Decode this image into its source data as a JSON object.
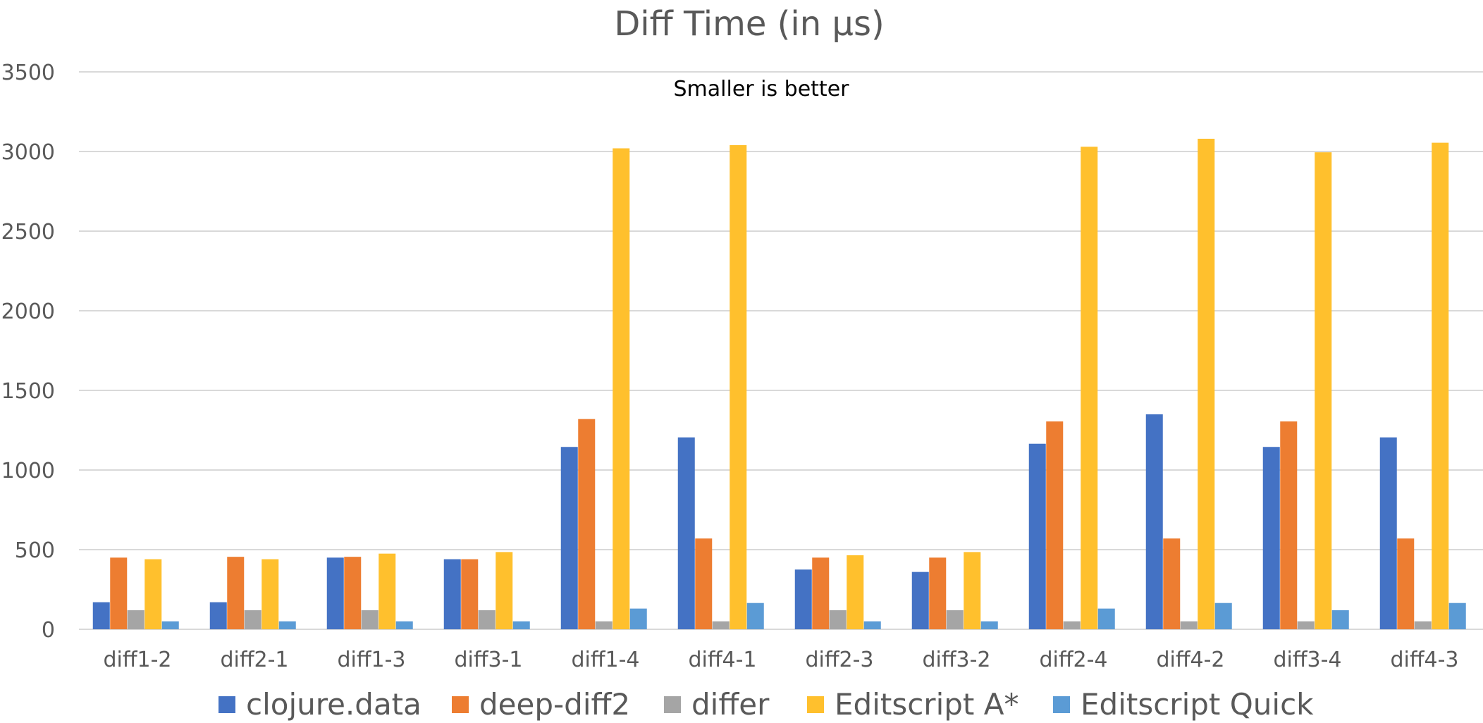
{
  "chart_data": {
    "type": "bar",
    "title": "Diff Time (in  μs)",
    "subtitle": "Smaller is better",
    "xlabel": "",
    "ylabel": "",
    "ylim": [
      0,
      3500
    ],
    "yticks": [
      "0",
      "500",
      "1000",
      "1500",
      "2000",
      "2500",
      "3000",
      "3500"
    ],
    "grid": true,
    "legend_position": "bottom",
    "categories": [
      "diff1-2",
      "diff2-1",
      "diff1-3",
      "diff3-1",
      "diff1-4",
      "diff4-1",
      "diff2-3",
      "diff3-2",
      "diff2-4",
      "diff4-2",
      "diff3-4",
      "diff4-3"
    ],
    "series": [
      {
        "name": "clojure.data",
        "color": "#4472c4",
        "values": [
          170,
          170,
          450,
          440,
          1145,
          1205,
          375,
          360,
          1165,
          1350,
          1145,
          1205
        ]
      },
      {
        "name": "deep-diff2",
        "color": "#ed7d31",
        "values": [
          450,
          455,
          455,
          440,
          1320,
          570,
          450,
          450,
          1305,
          570,
          1305,
          570
        ]
      },
      {
        "name": "differ",
        "color": "#a5a5a5",
        "values": [
          120,
          120,
          120,
          120,
          50,
          50,
          120,
          120,
          50,
          50,
          50,
          50
        ]
      },
      {
        "name": "Editscript A*",
        "color": "#ffc02d",
        "values": [
          440,
          440,
          475,
          485,
          3020,
          3040,
          465,
          485,
          3030,
          3080,
          2995,
          3055
        ]
      },
      {
        "name": "Editscript Quick",
        "color": "#5b9bd5",
        "values": [
          50,
          50,
          50,
          50,
          130,
          165,
          50,
          50,
          130,
          165,
          120,
          165
        ]
      }
    ]
  }
}
